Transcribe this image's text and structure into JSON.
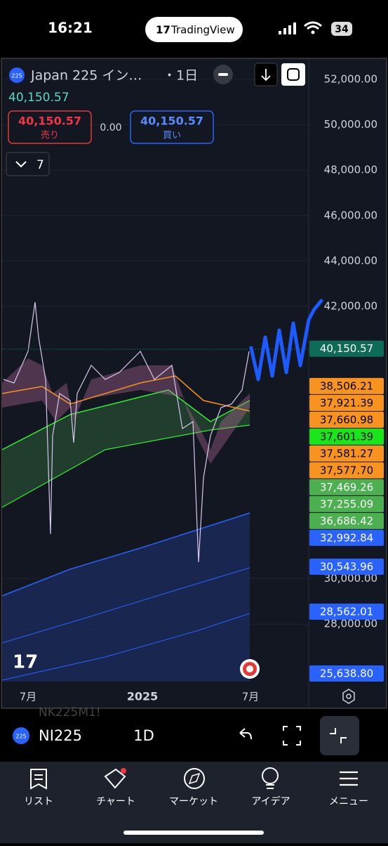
{
  "status_bar": {
    "time": "16:21",
    "app": "TradingView",
    "battery": "34"
  },
  "chart_header": {
    "symbol": "Japan 225 イン…",
    "interval": "・1日",
    "last_price": "40,150.57",
    "sell_price": "40,150.57",
    "sell_label": "売り",
    "spread": "0.00",
    "buy_price": "40,150.57",
    "buy_label": "買い",
    "indicators_count": "7"
  },
  "price_axis": {
    "ticks": [
      {
        "value": 52000,
        "label": "52,000.00"
      },
      {
        "value": 50000,
        "label": "50,000.00"
      },
      {
        "value": 48000,
        "label": "48,000.00"
      },
      {
        "value": 46000,
        "label": "46,000.00"
      },
      {
        "value": 44000,
        "label": "44,000.00"
      },
      {
        "value": 42000,
        "label": "42,000.00"
      },
      {
        "value": 30000,
        "label": "30,000.00"
      },
      {
        "value": 28000,
        "label": "28,000.00"
      }
    ],
    "current_price": {
      "value": 40150.57,
      "label": "40,150.57",
      "color": "#0e6b58"
    },
    "tags": [
      {
        "value": 38506.21,
        "label": "38,506.21",
        "color": "#f7931e"
      },
      {
        "value": 37921.39,
        "label": "37,921.39",
        "color": "#f7931e"
      },
      {
        "value": 37660.98,
        "label": "37,660.98",
        "color": "#f7931e"
      },
      {
        "value": 37601.39,
        "label": "37,601.39",
        "color": "#19e619"
      },
      {
        "value": 37581.27,
        "label": "37,581.27",
        "color": "#f7931e"
      },
      {
        "value": 37577.7,
        "label": "37,577.70",
        "color": "#f7931e"
      },
      {
        "value": 37469.26,
        "label": "37,469.26",
        "color": "#4caf50"
      },
      {
        "value": 37255.09,
        "label": "37,255.09",
        "color": "#4caf50"
      },
      {
        "value": 36686.42,
        "label": "36,686.42",
        "color": "#4caf50"
      },
      {
        "value": 32992.84,
        "label": "32,992.84",
        "color": "#2962ff"
      },
      {
        "value": 30543.96,
        "label": "30,543.96",
        "color": "#2962ff"
      },
      {
        "value": 28562.01,
        "label": "28,562.01",
        "color": "#2962ff"
      },
      {
        "value": 25638.8,
        "label": "25,638.80",
        "color": "#2962ff"
      }
    ]
  },
  "time_axis": {
    "labels": [
      "7月",
      "2025",
      "7月"
    ]
  },
  "toolbar": {
    "symbol": "NI225",
    "interval": "1D",
    "ghost_symbol": "NK225M1!"
  },
  "tab_bar": {
    "items": [
      "リスト",
      "チャート",
      "マーケット",
      "アイデア",
      "メニュー"
    ]
  }
}
